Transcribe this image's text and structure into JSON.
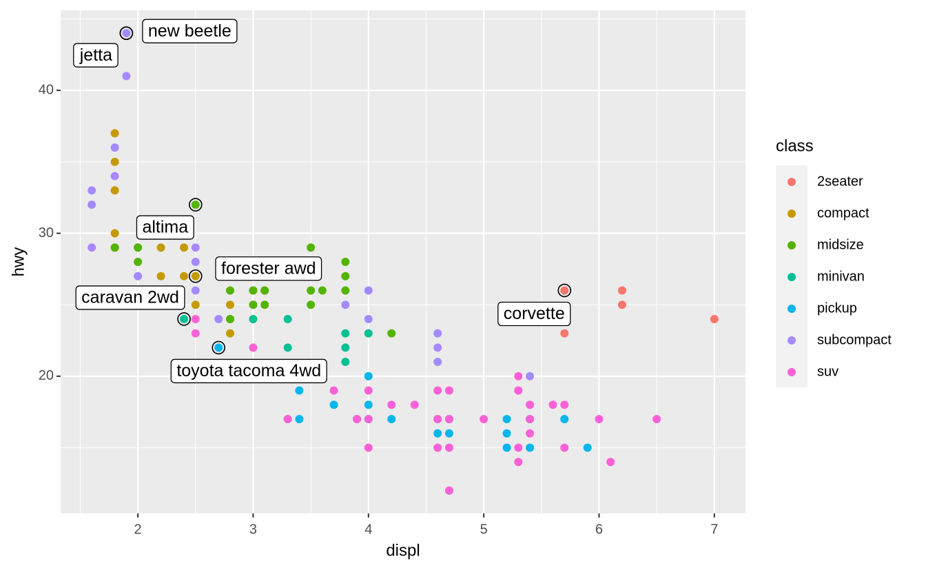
{
  "chart_data": {
    "type": "scatter",
    "x_label": "displ",
    "y_label": "hwy",
    "legend_title": "class",
    "xlim": [
      1.33,
      7.27
    ],
    "ylim": [
      10.4,
      45.6
    ],
    "xticks": [
      2,
      3,
      4,
      5,
      6,
      7
    ],
    "yticks": [
      20,
      30,
      40
    ],
    "grid": true,
    "legend": "right",
    "series": [
      {
        "name": "2seater",
        "color": "#F8766D",
        "x": [
          5.7,
          5.7,
          6.2,
          6.2,
          7
        ],
        "values": [
          26,
          23,
          26,
          25,
          24
        ]
      },
      {
        "name": "compact",
        "color": "#C49A00",
        "x": [
          1.8,
          1.8,
          1.8,
          1.8,
          1.8,
          2,
          2.2,
          2.2,
          2.4,
          2.4,
          2.5,
          2.5,
          2.8,
          2.8,
          2.8,
          3,
          3.1
        ],
        "values": [
          37,
          35,
          33,
          30,
          29,
          29,
          29,
          27,
          27,
          29,
          27,
          25,
          25,
          24,
          23,
          26,
          26
        ]
      },
      {
        "name": "midsize",
        "color": "#53B400",
        "x": [
          1.8,
          2,
          2,
          2.5,
          2.8,
          2.8,
          3,
          3,
          3.1,
          3.1,
          3.5,
          3.5,
          3.5,
          3.6,
          3.8,
          3.8,
          3.8,
          4.2
        ],
        "values": [
          29,
          29,
          28,
          32,
          26,
          24,
          26,
          25,
          26,
          25,
          29,
          26,
          25,
          26,
          28,
          27,
          26,
          23
        ]
      },
      {
        "name": "minivan",
        "color": "#00C094",
        "x": [
          2.4,
          3,
          3.3,
          3.3,
          3.3,
          3.8,
          3.8,
          3.8,
          4
        ],
        "values": [
          24,
          24,
          24,
          22,
          17,
          23,
          22,
          21,
          23
        ]
      },
      {
        "name": "pickup",
        "color": "#00B6EB",
        "x": [
          2.7,
          3.4,
          3.4,
          3.7,
          3.9,
          4,
          4,
          4,
          4.2,
          4.6,
          4.6,
          4.7,
          4.7,
          4.7,
          5.2,
          5.2,
          5.2,
          5.4,
          5.4,
          5.7,
          5.9
        ],
        "values": [
          22,
          19,
          17,
          18,
          17,
          20,
          18,
          17,
          17,
          17,
          16,
          17,
          16,
          12,
          17,
          16,
          15,
          17,
          15,
          17,
          15
        ]
      },
      {
        "name": "subcompact",
        "color": "#A58AFF",
        "x": [
          1.6,
          1.6,
          1.6,
          1.8,
          1.8,
          1.9,
          1.9,
          2,
          2.5,
          2.5,
          2.5,
          2.7,
          3.8,
          4,
          4,
          4.6,
          4.6,
          4.6,
          5.4
        ],
        "values": [
          33,
          32,
          29,
          36,
          34,
          44,
          41,
          27,
          29,
          28,
          26,
          24,
          25,
          26,
          24,
          23,
          22,
          21,
          20
        ]
      },
      {
        "name": "suv",
        "color": "#FB61D7",
        "x": [
          2.5,
          2.5,
          3,
          3.3,
          3.7,
          3.9,
          4,
          4,
          4,
          4.2,
          4.4,
          4.6,
          4.6,
          4.6,
          4.7,
          4.7,
          4.7,
          4.7,
          5,
          5.3,
          5.3,
          5.3,
          5.3,
          5.4,
          5.4,
          5.4,
          5.6,
          5.7,
          5.7,
          6,
          6.1,
          6.5
        ],
        "values": [
          24,
          23,
          22,
          17,
          19,
          17,
          19,
          17,
          15,
          18,
          18,
          19,
          17,
          15,
          19,
          17,
          15,
          12,
          17,
          20,
          19,
          15,
          14,
          18,
          17,
          16,
          18,
          18,
          15,
          17,
          14,
          17
        ]
      }
    ],
    "annotations": [
      {
        "label": "new beetle",
        "x": 1.9,
        "y": 44
      },
      {
        "label": "jetta",
        "x": 1.9,
        "y": 44
      },
      {
        "label": "altima",
        "x": 2.5,
        "y": 32
      },
      {
        "label": "forester awd",
        "x": 2.5,
        "y": 27
      },
      {
        "label": "caravan 2wd",
        "x": 2.4,
        "y": 24
      },
      {
        "label": "toyota tacoma 4wd",
        "x": 2.7,
        "y": 22
      },
      {
        "label": "corvette",
        "x": 5.7,
        "y": 26
      }
    ]
  }
}
